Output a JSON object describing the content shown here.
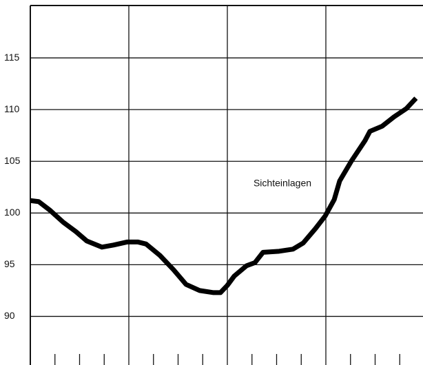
{
  "chart_data": {
    "type": "line",
    "annotation": "Sichteinlagen",
    "x": [
      0,
      0.34,
      0.78,
      1.34,
      1.85,
      2.29,
      2.91,
      3.38,
      3.94,
      4.36,
      4.7,
      5.26,
      5.82,
      6.32,
      6.88,
      7.44,
      7.72,
      8.0,
      8.28,
      8.78,
      9.12,
      9.45,
      10.1,
      10.66,
      11.08,
      11.58,
      11.97,
      12.34,
      12.56,
      13.03,
      13.59,
      13.79,
      14.29,
      14.77,
      15.27,
      15.66
    ],
    "series": [
      {
        "color": "#000000",
        "values": [
          101.2,
          101.1,
          100.3,
          99.1,
          98.2,
          97.3,
          96.7,
          96.9,
          97.2,
          97.2,
          97.0,
          95.9,
          94.5,
          93.1,
          92.5,
          92.3,
          92.3,
          93.0,
          93.9,
          94.9,
          95.2,
          96.2,
          96.3,
          96.5,
          97.1,
          98.5,
          99.7,
          101.3,
          103.1,
          105.0,
          107.0,
          107.9,
          108.4,
          109.3,
          110.1,
          111.1
        ]
      }
    ],
    "xlim": [
      0,
      16
    ],
    "xticks": [
      4,
      8,
      12
    ],
    "xticks_minor": [
      1,
      2,
      3,
      5,
      6,
      7,
      9,
      10,
      11,
      13,
      14,
      15
    ],
    "ylim": [
      85.3,
      120
    ],
    "yticks": [
      90,
      95,
      100,
      105,
      110,
      115
    ],
    "grid": true
  }
}
